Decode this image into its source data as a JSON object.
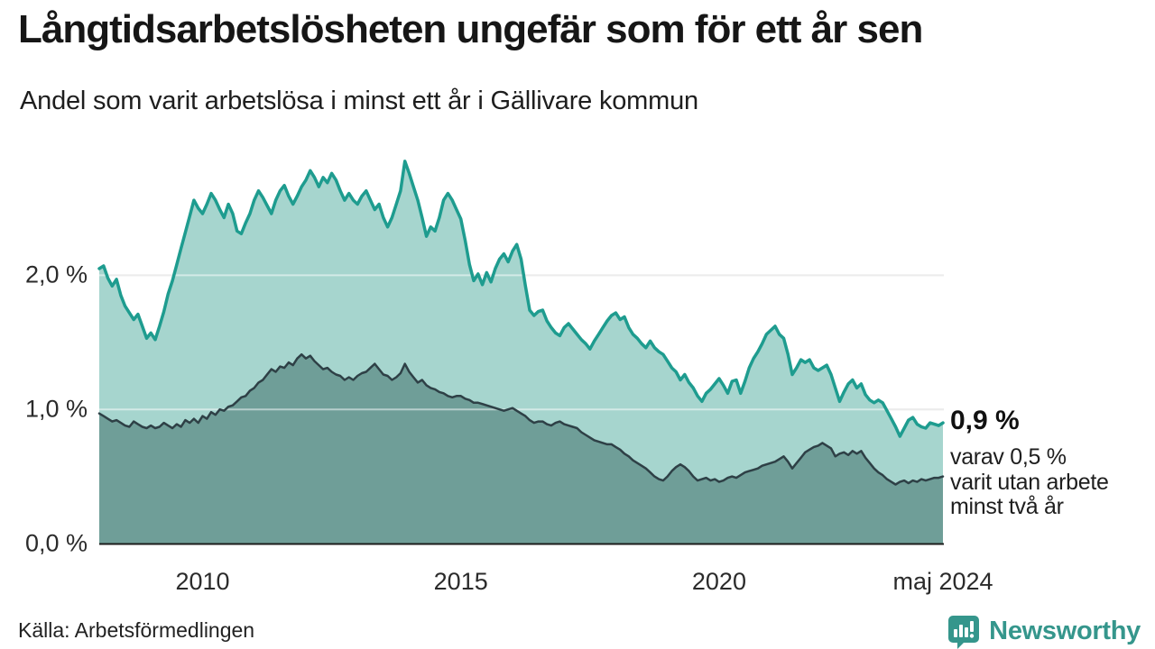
{
  "header": {
    "title": "Långtidsarbetslösheten ungefär som för ett år sen",
    "subtitle": "Andel som varit arbetslösa i minst ett år i Gällivare kommun"
  },
  "annotation": {
    "value_label": "0,9 %",
    "details": [
      "varav 0,5 %",
      "varit utan arbete",
      "minst två år"
    ]
  },
  "footer": {
    "source": "Källa: Arbetsförmedlingen",
    "logo_text": "Newsworthy"
  },
  "colors": {
    "total_line": "#1e9c8f",
    "total_fill": "#a6d5ce",
    "two_year_line": "#2e4046",
    "two_year_fill": "#6f9e98",
    "baseline": "#1c1c1c",
    "grid_under": "#d9d9d9",
    "grid_over": "rgba(255,255,255,0.5)",
    "logo": "#35968c",
    "logo_glyph": "#ffffff"
  },
  "chart_data": {
    "type": "area",
    "title": "Andel som varit arbetslösa i minst ett år i Gällivare kommun",
    "x_unit": "decimal_year",
    "x_start": 2008.0,
    "x_step": 0.0833333,
    "x_range": [
      2008.0,
      2024.3333
    ],
    "ylim": [
      0,
      2.95
    ],
    "grid": true,
    "y_ticks": [
      {
        "value": 0,
        "label": "0,0 %"
      },
      {
        "value": 1,
        "label": "1,0 %"
      },
      {
        "value": 2,
        "label": "2,0 %"
      }
    ],
    "x_ticks": [
      {
        "value": 2010,
        "label": "2010"
      },
      {
        "value": 2015,
        "label": "2015"
      },
      {
        "value": 2020,
        "label": "2020"
      },
      {
        "value": 2024.3333,
        "label": "maj 2024"
      }
    ],
    "series": [
      {
        "name": "Arbetslösa minst ett år",
        "end_label": "0,9 %",
        "values": [
          2.05,
          2.07,
          1.98,
          1.92,
          1.97,
          1.85,
          1.77,
          1.72,
          1.67,
          1.71,
          1.62,
          1.53,
          1.57,
          1.52,
          1.62,
          1.73,
          1.86,
          1.96,
          2.08,
          2.2,
          2.32,
          2.44,
          2.56,
          2.5,
          2.46,
          2.53,
          2.61,
          2.56,
          2.49,
          2.43,
          2.53,
          2.46,
          2.33,
          2.31,
          2.39,
          2.46,
          2.56,
          2.63,
          2.58,
          2.52,
          2.46,
          2.56,
          2.63,
          2.67,
          2.59,
          2.53,
          2.59,
          2.66,
          2.71,
          2.78,
          2.73,
          2.66,
          2.73,
          2.69,
          2.76,
          2.71,
          2.63,
          2.56,
          2.61,
          2.56,
          2.53,
          2.59,
          2.63,
          2.56,
          2.49,
          2.53,
          2.43,
          2.36,
          2.43,
          2.53,
          2.63,
          2.85,
          2.76,
          2.66,
          2.56,
          2.43,
          2.29,
          2.36,
          2.33,
          2.43,
          2.56,
          2.61,
          2.56,
          2.49,
          2.42,
          2.26,
          2.08,
          1.96,
          2.01,
          1.93,
          2.02,
          1.95,
          2.05,
          2.12,
          2.16,
          2.1,
          2.18,
          2.23,
          2.12,
          1.92,
          1.74,
          1.7,
          1.73,
          1.74,
          1.66,
          1.61,
          1.57,
          1.55,
          1.61,
          1.64,
          1.6,
          1.56,
          1.52,
          1.49,
          1.45,
          1.51,
          1.56,
          1.61,
          1.66,
          1.7,
          1.72,
          1.67,
          1.69,
          1.61,
          1.56,
          1.53,
          1.49,
          1.46,
          1.51,
          1.46,
          1.43,
          1.41,
          1.36,
          1.31,
          1.28,
          1.22,
          1.26,
          1.2,
          1.16,
          1.1,
          1.06,
          1.12,
          1.15,
          1.19,
          1.23,
          1.18,
          1.12,
          1.21,
          1.22,
          1.12,
          1.21,
          1.31,
          1.38,
          1.43,
          1.49,
          1.56,
          1.59,
          1.62,
          1.56,
          1.53,
          1.41,
          1.26,
          1.31,
          1.37,
          1.35,
          1.37,
          1.31,
          1.29,
          1.31,
          1.33,
          1.26,
          1.16,
          1.06,
          1.13,
          1.19,
          1.22,
          1.16,
          1.19,
          1.11,
          1.07,
          1.05,
          1.07,
          1.05,
          0.99,
          0.93,
          0.87,
          0.8,
          0.86,
          0.92,
          0.94,
          0.89,
          0.87,
          0.86,
          0.9,
          0.89,
          0.88,
          0.9
        ]
      },
      {
        "name": "Arbetslösa minst två år",
        "end_label": "0,5 %",
        "values": [
          0.97,
          0.95,
          0.93,
          0.91,
          0.92,
          0.9,
          0.88,
          0.87,
          0.91,
          0.89,
          0.87,
          0.86,
          0.88,
          0.86,
          0.87,
          0.9,
          0.88,
          0.86,
          0.89,
          0.87,
          0.92,
          0.9,
          0.93,
          0.9,
          0.95,
          0.93,
          0.98,
          0.96,
          1.0,
          0.99,
          1.02,
          1.03,
          1.06,
          1.09,
          1.1,
          1.14,
          1.16,
          1.2,
          1.22,
          1.26,
          1.3,
          1.28,
          1.32,
          1.31,
          1.35,
          1.33,
          1.38,
          1.41,
          1.38,
          1.4,
          1.36,
          1.33,
          1.3,
          1.31,
          1.28,
          1.26,
          1.25,
          1.22,
          1.24,
          1.22,
          1.25,
          1.27,
          1.28,
          1.31,
          1.34,
          1.3,
          1.26,
          1.25,
          1.22,
          1.24,
          1.27,
          1.34,
          1.28,
          1.24,
          1.2,
          1.22,
          1.18,
          1.16,
          1.15,
          1.13,
          1.12,
          1.1,
          1.09,
          1.1,
          1.1,
          1.08,
          1.07,
          1.05,
          1.05,
          1.04,
          1.03,
          1.02,
          1.01,
          1.0,
          0.99,
          1.0,
          1.01,
          0.99,
          0.97,
          0.95,
          0.92,
          0.9,
          0.91,
          0.91,
          0.89,
          0.88,
          0.9,
          0.91,
          0.89,
          0.88,
          0.87,
          0.86,
          0.83,
          0.81,
          0.79,
          0.77,
          0.76,
          0.75,
          0.74,
          0.74,
          0.72,
          0.7,
          0.67,
          0.65,
          0.62,
          0.6,
          0.58,
          0.56,
          0.53,
          0.5,
          0.48,
          0.47,
          0.5,
          0.54,
          0.57,
          0.59,
          0.57,
          0.54,
          0.5,
          0.47,
          0.48,
          0.49,
          0.47,
          0.48,
          0.46,
          0.47,
          0.49,
          0.5,
          0.49,
          0.51,
          0.53,
          0.54,
          0.55,
          0.56,
          0.58,
          0.59,
          0.6,
          0.61,
          0.63,
          0.65,
          0.61,
          0.56,
          0.6,
          0.64,
          0.68,
          0.7,
          0.72,
          0.73,
          0.75,
          0.73,
          0.71,
          0.65,
          0.67,
          0.68,
          0.66,
          0.69,
          0.67,
          0.69,
          0.64,
          0.6,
          0.56,
          0.53,
          0.51,
          0.48,
          0.46,
          0.44,
          0.46,
          0.47,
          0.45,
          0.47,
          0.46,
          0.48,
          0.47,
          0.48,
          0.49,
          0.49,
          0.5
        ]
      }
    ]
  }
}
